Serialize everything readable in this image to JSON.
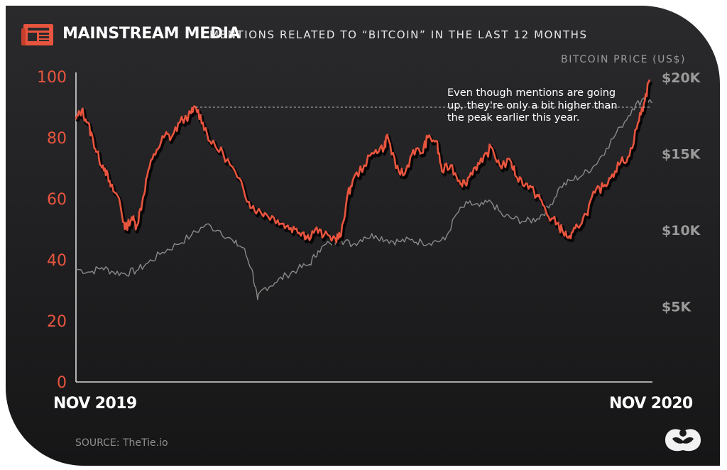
{
  "header": {
    "title": "MAINSTREAM MEDIA",
    "subtitle": "MENTIONS RELATED TO “BITCOIN” IN THE LAST 12 MONTHS",
    "icon": "newspaper-icon"
  },
  "annotation": "Even though mentions are going up, they're only a bit higher than the peak earlier this year.",
  "source": "SOURCE: TheTie.io",
  "logo": "visual-capitalist-logo-icon",
  "colors": {
    "mentions": "#e8553f",
    "price": "#8a8a8a",
    "background": "#242426",
    "left_ticks": "#e8553f",
    "right_ticks": "#9a9a9a"
  },
  "chart_data": {
    "type": "line",
    "x_start_label": "NOV 2019",
    "x_end_label": "NOV 2020",
    "ylim": [
      0,
      100
    ],
    "y_ticks": [
      0,
      20,
      40,
      60,
      80,
      100
    ],
    "y2_label": "BITCOIN PRICE (US$)",
    "y2_ticks": [
      "$5K",
      "$10K",
      "$15K",
      "$20K"
    ],
    "y2_tick_values": [
      5000,
      10000,
      15000,
      20000
    ],
    "y2_range": [
      0,
      20000
    ],
    "grid": false,
    "series": [
      {
        "name": "mentions",
        "axis": "left",
        "points": [
          [
            0.0,
            86
          ],
          [
            0.01,
            89
          ],
          [
            0.02,
            85
          ],
          [
            0.03,
            79
          ],
          [
            0.04,
            73
          ],
          [
            0.05,
            70
          ],
          [
            0.06,
            64
          ],
          [
            0.075,
            60
          ],
          [
            0.085,
            50
          ],
          [
            0.097,
            54
          ],
          [
            0.105,
            51
          ],
          [
            0.115,
            59
          ],
          [
            0.125,
            69
          ],
          [
            0.14,
            76
          ],
          [
            0.155,
            81
          ],
          [
            0.165,
            80
          ],
          [
            0.18,
            85
          ],
          [
            0.2,
            88
          ],
          [
            0.208,
            90
          ],
          [
            0.22,
            85
          ],
          [
            0.235,
            78
          ],
          [
            0.255,
            75
          ],
          [
            0.28,
            67
          ],
          [
            0.3,
            59
          ],
          [
            0.315,
            56
          ],
          [
            0.33,
            55
          ],
          [
            0.35,
            53
          ],
          [
            0.365,
            51
          ],
          [
            0.38,
            50
          ],
          [
            0.395,
            49
          ],
          [
            0.4,
            47
          ],
          [
            0.415,
            50
          ],
          [
            0.43,
            48
          ],
          [
            0.45,
            47
          ],
          [
            0.46,
            48
          ],
          [
            0.47,
            60
          ],
          [
            0.48,
            66
          ],
          [
            0.5,
            71
          ],
          [
            0.52,
            76
          ],
          [
            0.535,
            77
          ],
          [
            0.54,
            81
          ],
          [
            0.555,
            70
          ],
          [
            0.57,
            68
          ],
          [
            0.585,
            76
          ],
          [
            0.6,
            75
          ],
          [
            0.61,
            80
          ],
          [
            0.625,
            79
          ],
          [
            0.635,
            69
          ],
          [
            0.65,
            71
          ],
          [
            0.665,
            66
          ],
          [
            0.675,
            65
          ],
          [
            0.69,
            70
          ],
          [
            0.705,
            72
          ],
          [
            0.72,
            77
          ],
          [
            0.735,
            71
          ],
          [
            0.755,
            72
          ],
          [
            0.765,
            67
          ],
          [
            0.78,
            65
          ],
          [
            0.795,
            62
          ],
          [
            0.805,
            60
          ],
          [
            0.82,
            54
          ],
          [
            0.835,
            52
          ],
          [
            0.845,
            49
          ],
          [
            0.858,
            47
          ],
          [
            0.87,
            51
          ],
          [
            0.885,
            55
          ],
          [
            0.9,
            62
          ],
          [
            0.915,
            64
          ],
          [
            0.93,
            68
          ],
          [
            0.945,
            72
          ],
          [
            0.96,
            74
          ],
          [
            0.975,
            85
          ],
          [
            0.985,
            91
          ],
          [
            0.995,
            99
          ]
        ]
      },
      {
        "name": "bitcoin price",
        "axis": "right",
        "points": [
          [
            0.0,
            7400
          ],
          [
            0.025,
            7200
          ],
          [
            0.045,
            7500
          ],
          [
            0.065,
            7200
          ],
          [
            0.085,
            7100
          ],
          [
            0.105,
            7300
          ],
          [
            0.125,
            7800
          ],
          [
            0.15,
            8500
          ],
          [
            0.175,
            9000
          ],
          [
            0.2,
            9600
          ],
          [
            0.225,
            10300
          ],
          [
            0.25,
            9900
          ],
          [
            0.275,
            9100
          ],
          [
            0.29,
            8800
          ],
          [
            0.305,
            7400
          ],
          [
            0.315,
            5400
          ],
          [
            0.325,
            6100
          ],
          [
            0.345,
            6500
          ],
          [
            0.365,
            7000
          ],
          [
            0.385,
            7400
          ],
          [
            0.405,
            7700
          ],
          [
            0.42,
            8600
          ],
          [
            0.44,
            9100
          ],
          [
            0.46,
            9300
          ],
          [
            0.48,
            9000
          ],
          [
            0.5,
            9500
          ],
          [
            0.52,
            9600
          ],
          [
            0.54,
            9300
          ],
          [
            0.56,
            9200
          ],
          [
            0.58,
            9300
          ],
          [
            0.6,
            9150
          ],
          [
            0.62,
            9200
          ],
          [
            0.64,
            9300
          ],
          [
            0.66,
            11000
          ],
          [
            0.68,
            11700
          ],
          [
            0.7,
            11500
          ],
          [
            0.72,
            11800
          ],
          [
            0.74,
            10900
          ],
          [
            0.76,
            10700
          ],
          [
            0.78,
            10500
          ],
          [
            0.8,
            10700
          ],
          [
            0.82,
            11400
          ],
          [
            0.84,
            12800
          ],
          [
            0.86,
            13200
          ],
          [
            0.88,
            13600
          ],
          [
            0.9,
            14200
          ],
          [
            0.92,
            15300
          ],
          [
            0.945,
            16700
          ],
          [
            0.965,
            17900
          ],
          [
            0.985,
            18600
          ],
          [
            1.0,
            18300
          ]
        ]
      }
    ],
    "reference_line": {
      "value": 90,
      "from": 0.208,
      "to": 0.995
    }
  }
}
